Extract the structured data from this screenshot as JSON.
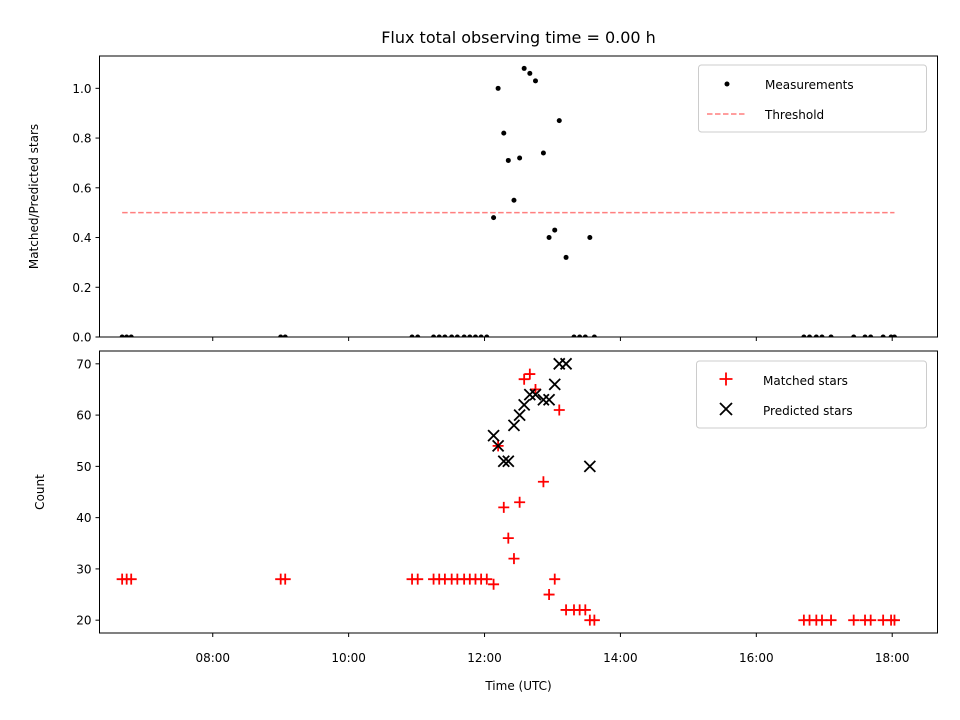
{
  "chart_data": [
    {
      "type": "scatter",
      "title": "Flux total observing time = 0.00 h",
      "xlabel": "",
      "ylabel": "Matched/Predicted stars",
      "xlim": [
        "06:20",
        "18:40"
      ],
      "ylim": [
        0,
        1.13
      ],
      "yticks": [
        0.0,
        0.2,
        0.4,
        0.6,
        0.8,
        1.0
      ],
      "ytick_labels": [
        "0.0",
        "0.2",
        "0.4",
        "0.6",
        "0.8",
        "1.0"
      ],
      "legend_position": "top-right",
      "series": [
        {
          "name": "Measurements",
          "kind": "dot",
          "color": "#000000",
          "points": [
            [
              "06:40",
              0.0
            ],
            [
              "06:44",
              0.0
            ],
            [
              "06:48",
              0.0
            ],
            [
              "09:00",
              0.0
            ],
            [
              "09:04",
              0.0
            ],
            [
              "10:56",
              0.0
            ],
            [
              "11:01",
              0.0
            ],
            [
              "11:15",
              0.0
            ],
            [
              "11:20",
              0.0
            ],
            [
              "11:25",
              0.0
            ],
            [
              "11:31",
              0.0
            ],
            [
              "11:36",
              0.0
            ],
            [
              "11:42",
              0.0
            ],
            [
              "11:47",
              0.0
            ],
            [
              "11:52",
              0.0
            ],
            [
              "11:57",
              0.0
            ],
            [
              "12:02",
              0.0
            ],
            [
              "12:08",
              0.48
            ],
            [
              "12:12",
              1.0
            ],
            [
              "12:17",
              0.82
            ],
            [
              "12:21",
              0.71
            ],
            [
              "12:26",
              0.55
            ],
            [
              "12:31",
              0.72
            ],
            [
              "12:35",
              1.08
            ],
            [
              "12:40",
              1.06
            ],
            [
              "12:45",
              1.03
            ],
            [
              "12:52",
              0.74
            ],
            [
              "12:57",
              0.4
            ],
            [
              "13:02",
              0.43
            ],
            [
              "13:06",
              0.87
            ],
            [
              "13:12",
              0.32
            ],
            [
              "13:19",
              0.0
            ],
            [
              "13:24",
              0.0
            ],
            [
              "13:29",
              0.0
            ],
            [
              "13:33",
              0.4
            ],
            [
              "13:37",
              0.0
            ],
            [
              "16:42",
              0.0
            ],
            [
              "16:47",
              0.0
            ],
            [
              "16:53",
              0.0
            ],
            [
              "16:58",
              0.0
            ],
            [
              "17:06",
              0.0
            ],
            [
              "17:26",
              0.0
            ],
            [
              "17:36",
              0.0
            ],
            [
              "17:41",
              0.0
            ],
            [
              "17:52",
              0.0
            ],
            [
              "17:59",
              0.0
            ],
            [
              "18:02",
              0.0
            ]
          ]
        },
        {
          "name": "Threshold",
          "kind": "dashed-line",
          "color": "#ff7f7f",
          "points": [
            [
              "06:40",
              0.5
            ],
            [
              "18:02",
              0.5
            ]
          ]
        }
      ]
    },
    {
      "type": "scatter",
      "title": "",
      "xlabel": "Time (UTC)",
      "ylabel": "Count",
      "xlim": [
        "06:20",
        "18:40"
      ],
      "ylim": [
        17.5,
        72.5
      ],
      "yticks": [
        20,
        30,
        40,
        50,
        60,
        70
      ],
      "ytick_labels": [
        "20",
        "30",
        "40",
        "50",
        "60",
        "70"
      ],
      "xticks": [
        "08:00",
        "10:00",
        "12:00",
        "14:00",
        "16:00",
        "18:00"
      ],
      "xtick_labels": [
        "08:00",
        "10:00",
        "12:00",
        "14:00",
        "16:00",
        "18:00"
      ],
      "legend_position": "top-right",
      "series": [
        {
          "name": "Matched stars",
          "kind": "plus",
          "color": "#ff0000",
          "points": [
            [
              "06:40",
              28
            ],
            [
              "06:44",
              28
            ],
            [
              "06:48",
              28
            ],
            [
              "09:00",
              28
            ],
            [
              "09:04",
              28
            ],
            [
              "10:56",
              28
            ],
            [
              "11:01",
              28
            ],
            [
              "11:15",
              28
            ],
            [
              "11:20",
              28
            ],
            [
              "11:25",
              28
            ],
            [
              "11:31",
              28
            ],
            [
              "11:36",
              28
            ],
            [
              "11:42",
              28
            ],
            [
              "11:47",
              28
            ],
            [
              "11:52",
              28
            ],
            [
              "11:57",
              28
            ],
            [
              "12:02",
              28
            ],
            [
              "12:08",
              27
            ],
            [
              "12:12",
              54
            ],
            [
              "12:17",
              42
            ],
            [
              "12:21",
              36
            ],
            [
              "12:26",
              32
            ],
            [
              "12:31",
              43
            ],
            [
              "12:35",
              67
            ],
            [
              "12:40",
              68
            ],
            [
              "12:45",
              65
            ],
            [
              "12:52",
              47
            ],
            [
              "12:57",
              25
            ],
            [
              "13:02",
              28
            ],
            [
              "13:06",
              61
            ],
            [
              "13:12",
              22
            ],
            [
              "13:19",
              22
            ],
            [
              "13:24",
              22
            ],
            [
              "13:29",
              22
            ],
            [
              "13:33",
              20
            ],
            [
              "13:37",
              20
            ],
            [
              "16:42",
              20
            ],
            [
              "16:47",
              20
            ],
            [
              "16:53",
              20
            ],
            [
              "16:58",
              20
            ],
            [
              "17:06",
              20
            ],
            [
              "17:26",
              20
            ],
            [
              "17:36",
              20
            ],
            [
              "17:41",
              20
            ],
            [
              "17:52",
              20
            ],
            [
              "17:59",
              20
            ],
            [
              "18:02",
              20
            ]
          ]
        },
        {
          "name": "Predicted stars",
          "kind": "cross",
          "color": "#000000",
          "points": [
            [
              "12:08",
              56
            ],
            [
              "12:12",
              54
            ],
            [
              "12:17",
              51
            ],
            [
              "12:21",
              51
            ],
            [
              "12:26",
              58
            ],
            [
              "12:31",
              60
            ],
            [
              "12:35",
              62
            ],
            [
              "12:40",
              64
            ],
            [
              "12:45",
              64
            ],
            [
              "12:52",
              63
            ],
            [
              "12:57",
              63
            ],
            [
              "13:02",
              66
            ],
            [
              "13:06",
              70
            ],
            [
              "13:12",
              70
            ],
            [
              "13:33",
              50
            ]
          ]
        }
      ]
    }
  ]
}
